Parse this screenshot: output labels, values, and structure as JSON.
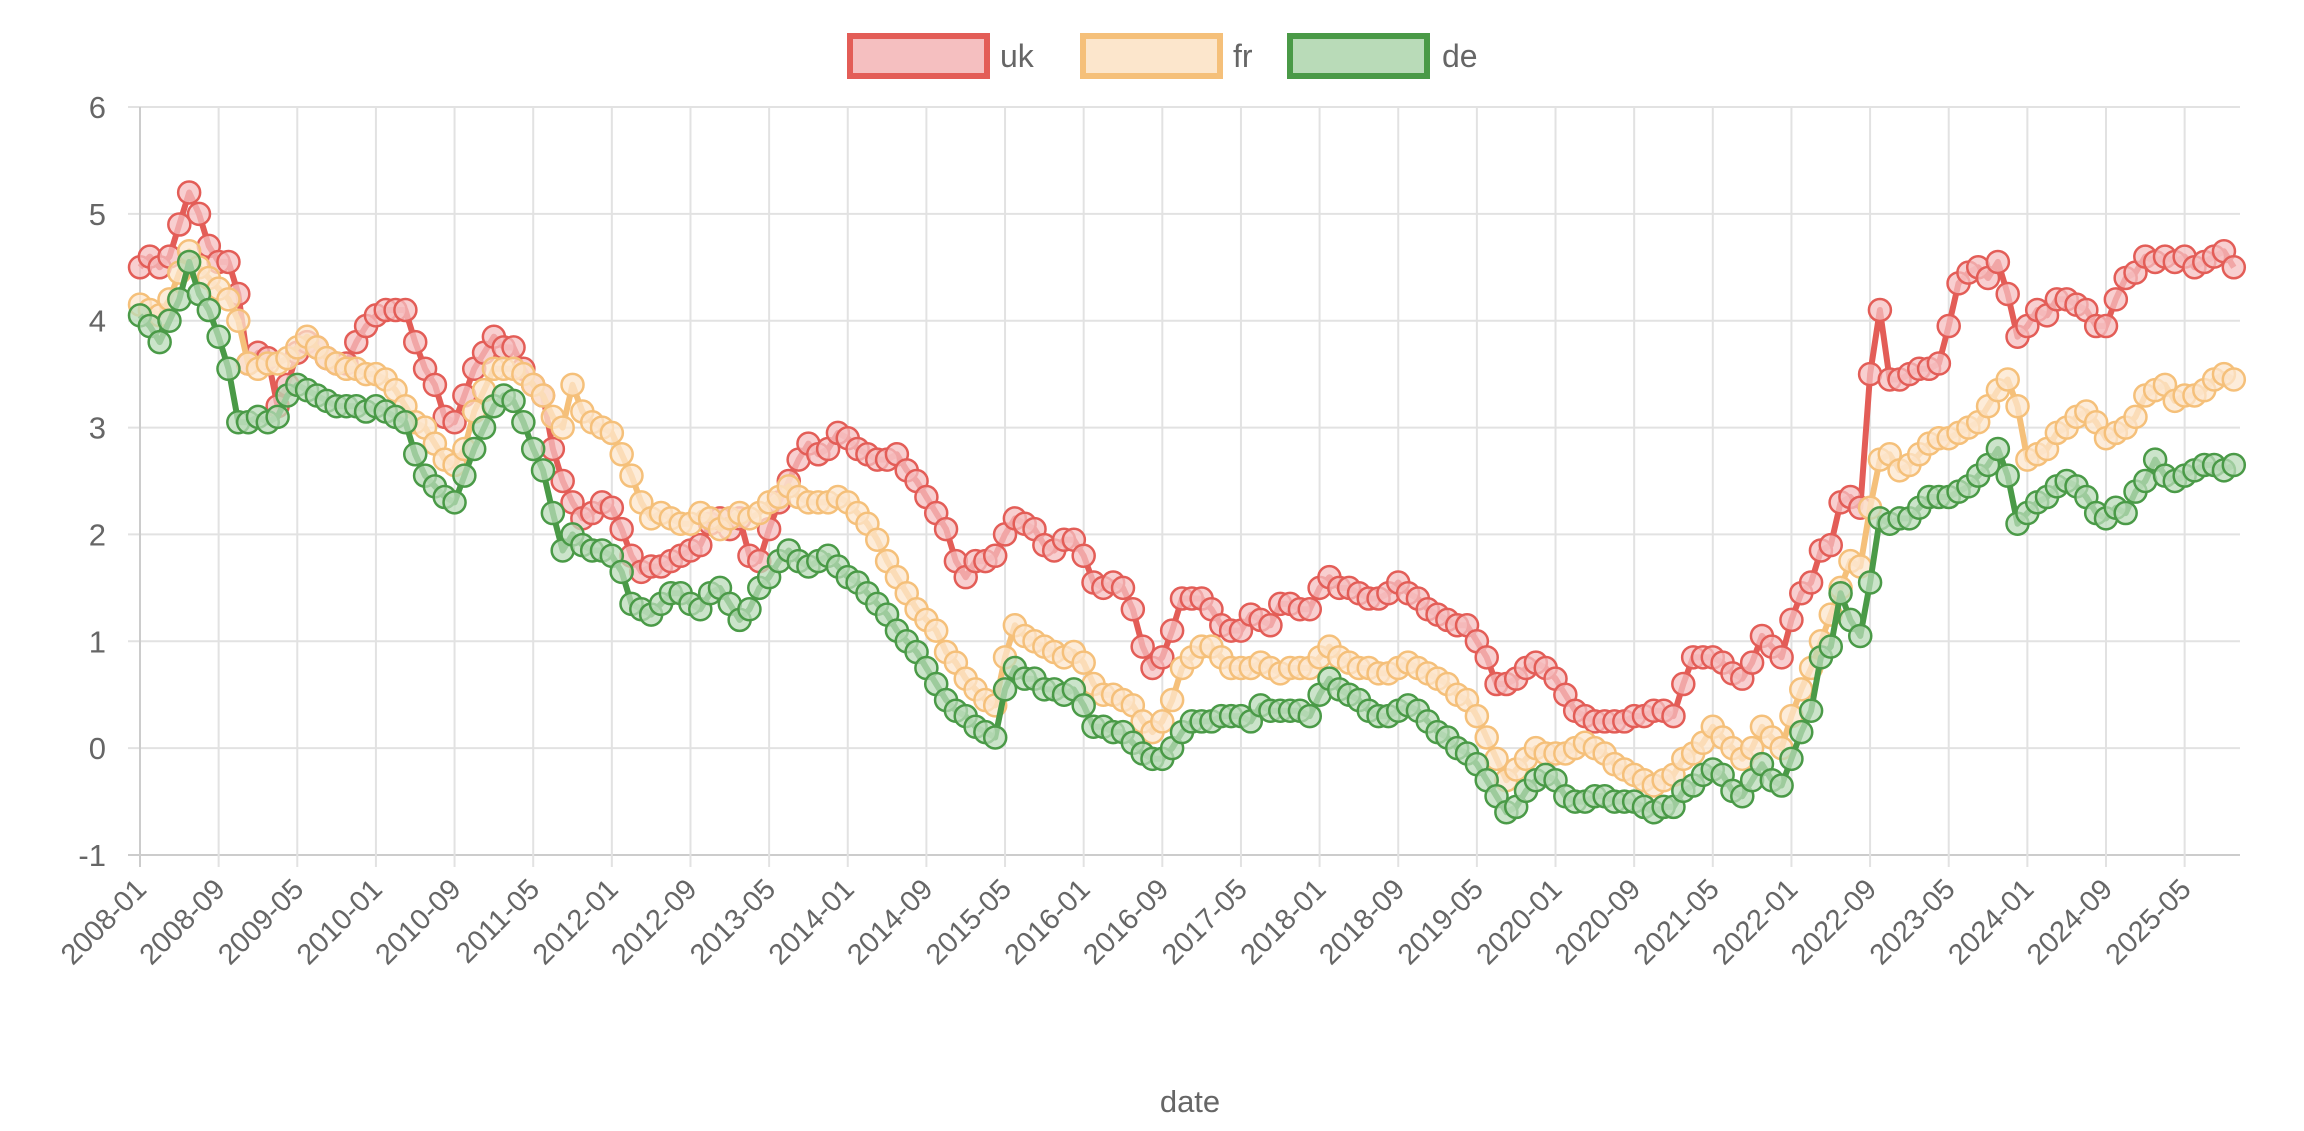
{
  "chart_data": {
    "type": "line",
    "title": "",
    "xlabel": "date",
    "ylabel": "",
    "ylim": [
      -1,
      6
    ],
    "yticks": [
      "6",
      "5",
      "4",
      "3",
      "2",
      "1",
      "0",
      "-1"
    ],
    "ytick_values": [
      6,
      5,
      4,
      3,
      2,
      1,
      0,
      -1
    ],
    "grid": true,
    "legend_position": "top-center",
    "x_start": "2008-01",
    "x_frequency": "monthly",
    "xticks": [
      "2008-01",
      "2008-09",
      "2009-05",
      "2010-01",
      "2010-09",
      "2011-05",
      "2012-01",
      "2012-09",
      "2013-05",
      "2014-01",
      "2014-09",
      "2015-05",
      "2016-01",
      "2016-09",
      "2017-05",
      "2018-01",
      "2018-09",
      "2019-05",
      "2020-01",
      "2020-09",
      "2021-05",
      "2022-01",
      "2022-09",
      "2023-05",
      "2024-01",
      "2024-09",
      "2025-05"
    ],
    "series": [
      {
        "name": "uk",
        "color": "#e35d57",
        "fill": "#f5bfc0",
        "values": [
          4.5,
          4.6,
          4.5,
          4.6,
          4.9,
          5.2,
          5.0,
          4.7,
          4.55,
          4.55,
          4.25,
          3.6,
          3.7,
          3.65,
          3.2,
          3.4,
          3.7,
          3.8,
          3.75,
          3.65,
          3.6,
          3.6,
          3.8,
          3.95,
          4.05,
          4.1,
          4.1,
          4.1,
          3.8,
          3.55,
          3.4,
          3.1,
          3.05,
          3.3,
          3.55,
          3.7,
          3.85,
          3.75,
          3.75,
          3.55,
          3.4,
          3.3,
          2.8,
          2.5,
          2.3,
          2.15,
          2.2,
          2.3,
          2.25,
          2.05,
          1.8,
          1.65,
          1.7,
          1.7,
          1.75,
          1.8,
          1.85,
          1.9,
          2.1,
          2.15,
          2.05,
          2.15,
          1.8,
          1.75,
          2.05,
          2.3,
          2.5,
          2.7,
          2.85,
          2.75,
          2.8,
          2.95,
          2.9,
          2.8,
          2.75,
          2.7,
          2.7,
          2.75,
          2.6,
          2.5,
          2.35,
          2.2,
          2.05,
          1.75,
          1.6,
          1.75,
          1.75,
          1.8,
          2.0,
          2.15,
          2.1,
          2.05,
          1.9,
          1.85,
          1.95,
          1.95,
          1.8,
          1.55,
          1.5,
          1.55,
          1.5,
          1.3,
          0.95,
          0.75,
          0.85,
          1.1,
          1.4,
          1.4,
          1.4,
          1.3,
          1.15,
          1.1,
          1.1,
          1.25,
          1.2,
          1.15,
          1.35,
          1.35,
          1.3,
          1.3,
          1.5,
          1.6,
          1.5,
          1.5,
          1.45,
          1.4,
          1.4,
          1.45,
          1.55,
          1.45,
          1.4,
          1.3,
          1.25,
          1.2,
          1.15,
          1.15,
          1.0,
          0.85,
          0.6,
          0.6,
          0.65,
          0.75,
          0.8,
          0.75,
          0.65,
          0.5,
          0.35,
          0.3,
          0.25,
          0.25,
          0.25,
          0.25,
          0.3,
          0.3,
          0.35,
          0.35,
          0.3,
          0.6,
          0.85,
          0.85,
          0.85,
          0.8,
          0.7,
          0.65,
          0.8,
          1.05,
          0.95,
          0.85,
          1.2,
          1.45,
          1.55,
          1.85,
          1.9,
          2.3,
          2.35,
          2.25,
          3.5,
          4.1,
          3.45,
          3.45,
          3.5,
          3.55,
          3.55,
          3.6,
          3.95,
          4.35,
          4.45,
          4.5,
          4.4,
          4.55,
          4.25,
          3.85,
          3.95,
          4.1,
          4.05,
          4.2,
          4.2,
          4.15,
          4.1,
          3.95,
          3.95,
          4.2,
          4.4,
          4.45,
          4.6,
          4.55,
          4.6,
          4.55,
          4.6,
          4.5,
          4.55,
          4.6,
          4.65,
          4.5
        ]
      },
      {
        "name": "fr",
        "color": "#f5c07a",
        "fill": "#fce6cc",
        "values": [
          4.15,
          4.1,
          4.05,
          4.2,
          4.45,
          4.65,
          4.5,
          4.4,
          4.3,
          4.2,
          4.0,
          3.6,
          3.55,
          3.6,
          3.6,
          3.65,
          3.75,
          3.85,
          3.75,
          3.65,
          3.6,
          3.55,
          3.55,
          3.5,
          3.5,
          3.45,
          3.35,
          3.2,
          3.05,
          3.0,
          2.85,
          2.7,
          2.65,
          2.8,
          3.15,
          3.35,
          3.55,
          3.55,
          3.55,
          3.5,
          3.4,
          3.3,
          3.1,
          3.0,
          3.4,
          3.15,
          3.05,
          3.0,
          2.95,
          2.75,
          2.55,
          2.3,
          2.15,
          2.2,
          2.15,
          2.1,
          2.1,
          2.2,
          2.15,
          2.05,
          2.15,
          2.2,
          2.15,
          2.2,
          2.3,
          2.35,
          2.45,
          2.35,
          2.3,
          2.3,
          2.3,
          2.35,
          2.3,
          2.2,
          2.1,
          1.95,
          1.75,
          1.6,
          1.45,
          1.3,
          1.2,
          1.1,
          0.9,
          0.8,
          0.65,
          0.55,
          0.45,
          0.4,
          0.85,
          1.15,
          1.05,
          1.0,
          0.95,
          0.9,
          0.85,
          0.9,
          0.8,
          0.6,
          0.5,
          0.5,
          0.45,
          0.4,
          0.25,
          0.15,
          0.25,
          0.45,
          0.75,
          0.85,
          0.95,
          0.95,
          0.85,
          0.75,
          0.75,
          0.75,
          0.8,
          0.75,
          0.7,
          0.75,
          0.75,
          0.75,
          0.85,
          0.95,
          0.85,
          0.8,
          0.75,
          0.75,
          0.7,
          0.7,
          0.75,
          0.8,
          0.75,
          0.7,
          0.65,
          0.6,
          0.5,
          0.45,
          0.3,
          0.1,
          -0.1,
          -0.3,
          -0.2,
          -0.1,
          0.0,
          -0.05,
          -0.05,
          -0.05,
          0.0,
          0.05,
          0.0,
          -0.05,
          -0.15,
          -0.2,
          -0.25,
          -0.3,
          -0.35,
          -0.3,
          -0.25,
          -0.1,
          -0.05,
          0.05,
          0.2,
          0.1,
          0.0,
          -0.1,
          0.0,
          0.2,
          0.1,
          0.0,
          0.3,
          0.55,
          0.75,
          1.0,
          1.25,
          1.5,
          1.75,
          1.7,
          2.25,
          2.7,
          2.75,
          2.6,
          2.65,
          2.75,
          2.85,
          2.9,
          2.9,
          2.95,
          3.0,
          3.05,
          3.2,
          3.35,
          3.45,
          3.2,
          2.7,
          2.75,
          2.8,
          2.95,
          3.0,
          3.1,
          3.15,
          3.05,
          2.9,
          2.95,
          3.0,
          3.1,
          3.3,
          3.35,
          3.4,
          3.25,
          3.3,
          3.3,
          3.35,
          3.45,
          3.5,
          3.45
        ]
      },
      {
        "name": "de",
        "color": "#4a9a47",
        "fill": "#b9dbb8",
        "values": [
          4.05,
          3.95,
          3.8,
          4.0,
          4.2,
          4.55,
          4.25,
          4.1,
          3.85,
          3.55,
          3.05,
          3.05,
          3.1,
          3.05,
          3.1,
          3.3,
          3.4,
          3.35,
          3.3,
          3.25,
          3.2,
          3.2,
          3.2,
          3.15,
          3.2,
          3.15,
          3.1,
          3.05,
          2.75,
          2.55,
          2.45,
          2.35,
          2.3,
          2.55,
          2.8,
          3.0,
          3.2,
          3.3,
          3.25,
          3.05,
          2.8,
          2.6,
          2.2,
          1.85,
          2.0,
          1.9,
          1.85,
          1.85,
          1.8,
          1.65,
          1.35,
          1.3,
          1.25,
          1.35,
          1.45,
          1.45,
          1.35,
          1.3,
          1.45,
          1.5,
          1.35,
          1.2,
          1.3,
          1.5,
          1.6,
          1.75,
          1.85,
          1.75,
          1.7,
          1.75,
          1.8,
          1.7,
          1.6,
          1.55,
          1.45,
          1.35,
          1.25,
          1.1,
          1.0,
          0.9,
          0.75,
          0.6,
          0.45,
          0.35,
          0.3,
          0.2,
          0.15,
          0.1,
          0.55,
          0.75,
          0.65,
          0.65,
          0.55,
          0.55,
          0.5,
          0.55,
          0.4,
          0.2,
          0.2,
          0.15,
          0.15,
          0.05,
          -0.05,
          -0.1,
          -0.1,
          0.0,
          0.15,
          0.25,
          0.25,
          0.25,
          0.3,
          0.3,
          0.3,
          0.25,
          0.4,
          0.35,
          0.35,
          0.35,
          0.35,
          0.3,
          0.5,
          0.65,
          0.55,
          0.5,
          0.45,
          0.35,
          0.3,
          0.3,
          0.35,
          0.4,
          0.35,
          0.25,
          0.15,
          0.1,
          0.0,
          -0.05,
          -0.15,
          -0.3,
          -0.45,
          -0.6,
          -0.55,
          -0.4,
          -0.3,
          -0.25,
          -0.3,
          -0.45,
          -0.5,
          -0.5,
          -0.45,
          -0.45,
          -0.5,
          -0.5,
          -0.5,
          -0.55,
          -0.6,
          -0.55,
          -0.55,
          -0.4,
          -0.35,
          -0.25,
          -0.2,
          -0.25,
          -0.4,
          -0.45,
          -0.3,
          -0.15,
          -0.3,
          -0.35,
          -0.1,
          0.15,
          0.35,
          0.85,
          0.95,
          1.45,
          1.2,
          1.05,
          1.55,
          2.15,
          2.1,
          2.15,
          2.15,
          2.25,
          2.35,
          2.35,
          2.35,
          2.4,
          2.45,
          2.55,
          2.65,
          2.8,
          2.55,
          2.1,
          2.2,
          2.3,
          2.35,
          2.45,
          2.5,
          2.45,
          2.35,
          2.2,
          2.15,
          2.25,
          2.2,
          2.4,
          2.5,
          2.7,
          2.55,
          2.5,
          2.55,
          2.6,
          2.65,
          2.65,
          2.6,
          2.65
        ]
      }
    ]
  }
}
